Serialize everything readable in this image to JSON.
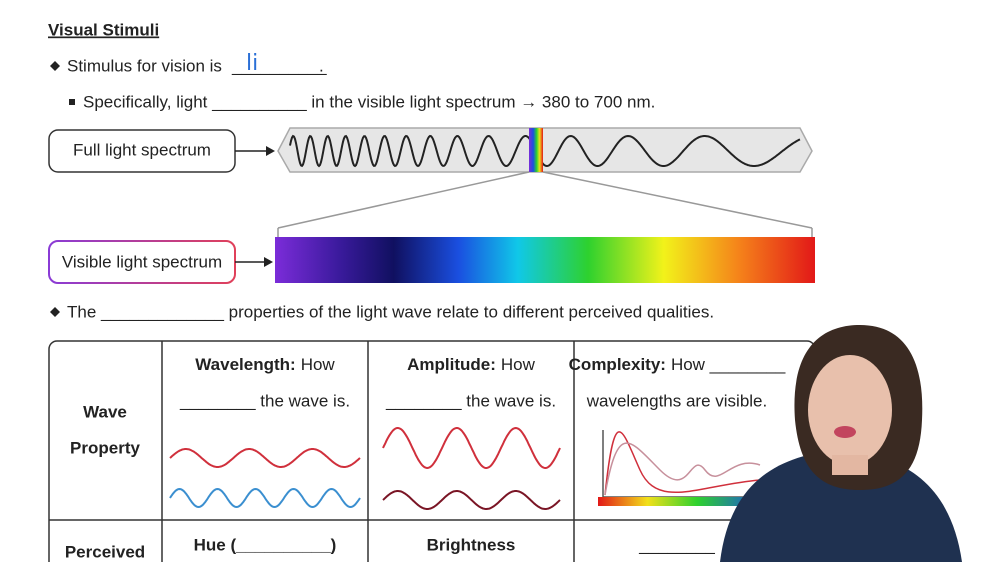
{
  "header": {
    "title": "Visual Stimuli"
  },
  "bullets": [
    {
      "text": "Stimulus for vision is",
      "blank": "__________",
      "handwriting": "li",
      "end": "."
    },
    {
      "text": "Specifically, light __________ in the visible light spectrum → 380 to 700 nm."
    },
    {
      "text": "The _____________ properties of the light wave relate to different perceived qualities."
    }
  ],
  "diagram": {
    "full_label": "Full light spectrum",
    "visible_label": "Visible light spectrum"
  },
  "table": {
    "row_headers": [
      [
        "Wave",
        "Property"
      ],
      [
        "Perceived"
      ]
    ],
    "columns": [
      {
        "heading": "Wavelength:",
        "lead": "How",
        "line2": "________ the wave is.",
        "perceived": "Hue (__________)"
      },
      {
        "heading": "Amplitude:",
        "lead": "How",
        "line2": "________ the wave is.",
        "perceived": "Brightness"
      },
      {
        "heading": "Complexity:",
        "lead": "How ________",
        "line2": "wavelengths are visible.",
        "perceived": "________"
      }
    ]
  }
}
